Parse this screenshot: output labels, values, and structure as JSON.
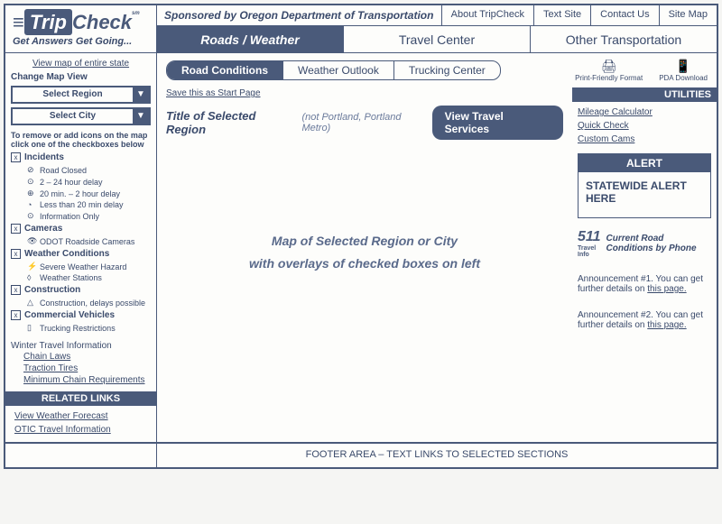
{
  "logo": {
    "trip": "Trip",
    "check": "Check",
    "sm": "sm"
  },
  "tagline": "Get Answers Get Going...",
  "sponsor": "Sponsored by Oregon Department of Transportation",
  "topLinks": [
    "About TripCheck",
    "Text Site",
    "Contact Us",
    "Site Map"
  ],
  "mainTabs": [
    "Roads / Weather",
    "Travel Center",
    "Other Transportation"
  ],
  "subTabs": [
    "Road Conditions",
    "Weather Outlook",
    "Trucking Center"
  ],
  "utilIcons": {
    "print": "Print-Friendly Format",
    "pda": "PDA Download"
  },
  "sidebar": {
    "stateMap": "View map of entire state",
    "changeView": "Change Map View",
    "selectRegion": "Select Region",
    "selectCity": "Select City",
    "note": "To remove or add icons on the map click one of the checkboxes below",
    "groups": [
      {
        "label": "Incidents",
        "items": [
          {
            "icon": "⊘",
            "text": "Road Closed"
          },
          {
            "icon": "⊙",
            "text": "2 – 24 hour delay"
          },
          {
            "icon": "⊕",
            "text": "20 min. – 2 hour delay"
          },
          {
            "icon": "◔",
            "text": "Less than 20 min delay"
          },
          {
            "icon": "⊙",
            "text": "Information Only"
          }
        ]
      },
      {
        "label": "Cameras",
        "items": [
          {
            "icon": "👁",
            "text": "ODOT Roadside Cameras"
          }
        ]
      },
      {
        "label": "Weather Conditions",
        "items": [
          {
            "icon": "⚡",
            "text": "Severe Weather Hazard"
          },
          {
            "icon": "◊",
            "text": "Weather Stations"
          }
        ]
      },
      {
        "label": "Construction",
        "items": [
          {
            "icon": "△",
            "text": "Construction, delays possible"
          }
        ]
      },
      {
        "label": "Commercial Vehicles",
        "items": [
          {
            "icon": "▯",
            "text": "Trucking Restrictions"
          }
        ]
      }
    ],
    "winter": {
      "title": "Winter Travel Information",
      "links": [
        "Chain Laws",
        "Traction Tires",
        "Minimum Chain Requirements"
      ]
    },
    "related": {
      "title": "RELATED LINKS",
      "links": [
        "View Weather Forecast",
        "OTIC Travel Information"
      ]
    }
  },
  "content": {
    "saveLink": "Save this as Start Page",
    "regionTitle": "Title of Selected Region",
    "regionNote": "(not Portland, Portland Metro)",
    "travelBtn": "View Travel Services",
    "mapText1": "Map of Selected Region or City",
    "mapText2": "with overlays of checked boxes on left"
  },
  "right": {
    "utilTitle": "UTILITIES",
    "utilLinks": [
      "Mileage Calculator",
      "Quick Check",
      "Custom Cams"
    ],
    "alertTitle": "ALERT",
    "alertBody": "STATEWIDE ALERT HERE",
    "info511num": "511",
    "info511sub": "Travel Info",
    "info511text": "Current Road Conditions by Phone",
    "ann1": "Announcement #1. You can get further details on ",
    "ann2": "Announcement  #2. You can get further details on ",
    "annLink": "this page."
  },
  "footer": "FOOTER AREA – TEXT LINKS TO SELECTED SECTIONS"
}
